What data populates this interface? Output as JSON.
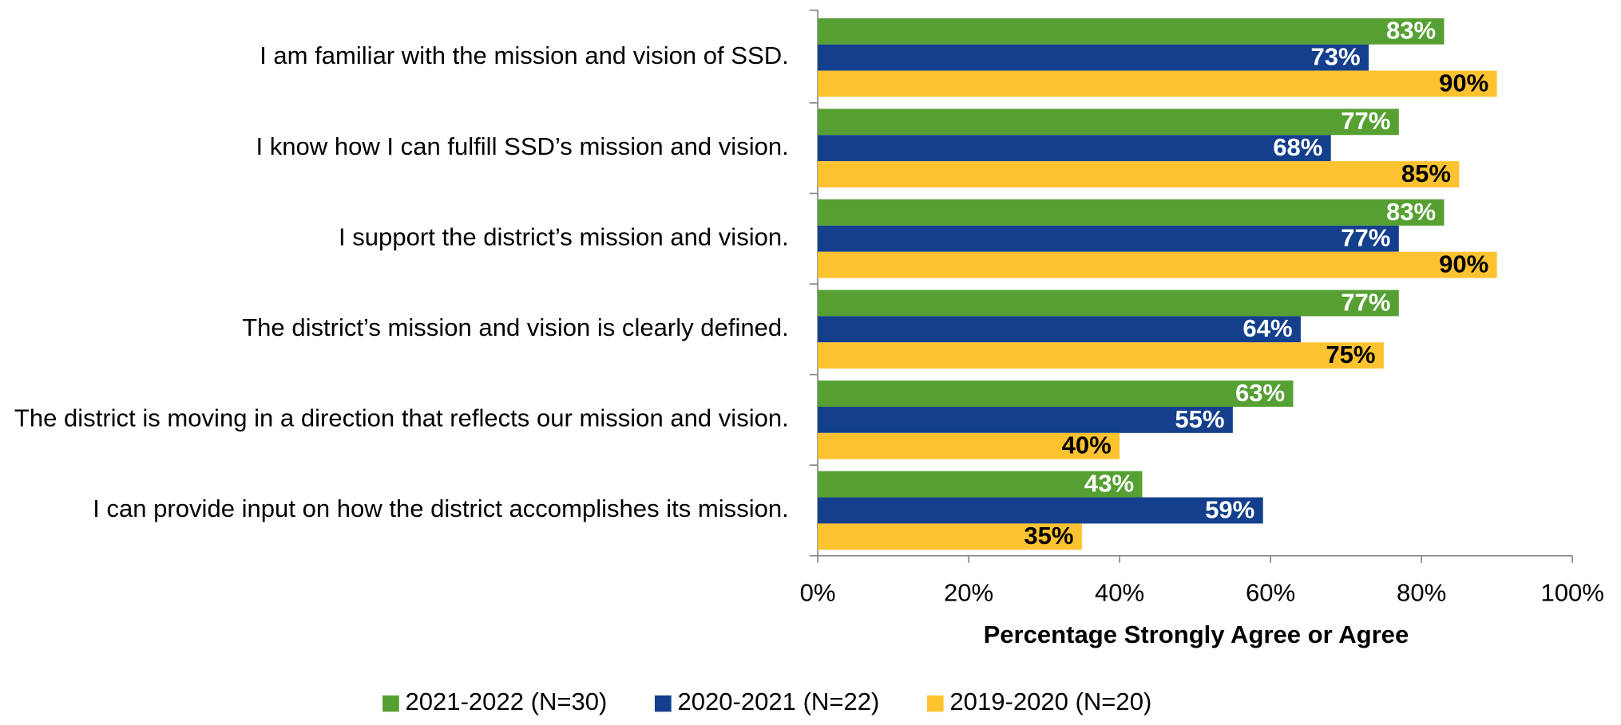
{
  "chart_data": {
    "type": "bar",
    "orientation": "horizontal",
    "categories": [
      "I am familiar with the mission and vision of SSD.",
      "I know how I can fulfill SSD’s mission and vision.",
      "I support the district’s mission and vision.",
      "The district’s mission and vision is clearly defined.",
      "The district is moving in a direction that reflects our mission and vision.",
      "I can provide input on how the district accomplishes its mission."
    ],
    "series": [
      {
        "name": "2021-2022 (N=30)",
        "color": "#56a033",
        "label_color": "#ffffff",
        "values": [
          83,
          77,
          83,
          77,
          63,
          43
        ],
        "value_labels": [
          "83%",
          "77%",
          "83%",
          "77%",
          "63%",
          "43%"
        ]
      },
      {
        "name": "2020-2021 (N=22)",
        "color": "#143f8c",
        "label_color": "#ffffff",
        "values": [
          73,
          68,
          77,
          64,
          55,
          59
        ],
        "value_labels": [
          "73%",
          "68%",
          "77%",
          "64%",
          "55%",
          "59%"
        ]
      },
      {
        "name": "2019-2020 (N=20)",
        "color": "#fdc230",
        "label_color": "#000000",
        "values": [
          90,
          85,
          90,
          75,
          40,
          35
        ],
        "value_labels": [
          "90%",
          "85%",
          "90%",
          "75%",
          "40%",
          "35%"
        ]
      }
    ],
    "xlabel": "Percentage Strongly Agree or Agree",
    "xlim": [
      0,
      100
    ],
    "xticks": [
      {
        "value": 0,
        "label": "0%"
      },
      {
        "value": 20,
        "label": "20%"
      },
      {
        "value": 40,
        "label": "40%"
      },
      {
        "value": 60,
        "label": "60%"
      },
      {
        "value": 80,
        "label": "80%"
      },
      {
        "value": 100,
        "label": "100%"
      }
    ],
    "legend": "bottom"
  }
}
